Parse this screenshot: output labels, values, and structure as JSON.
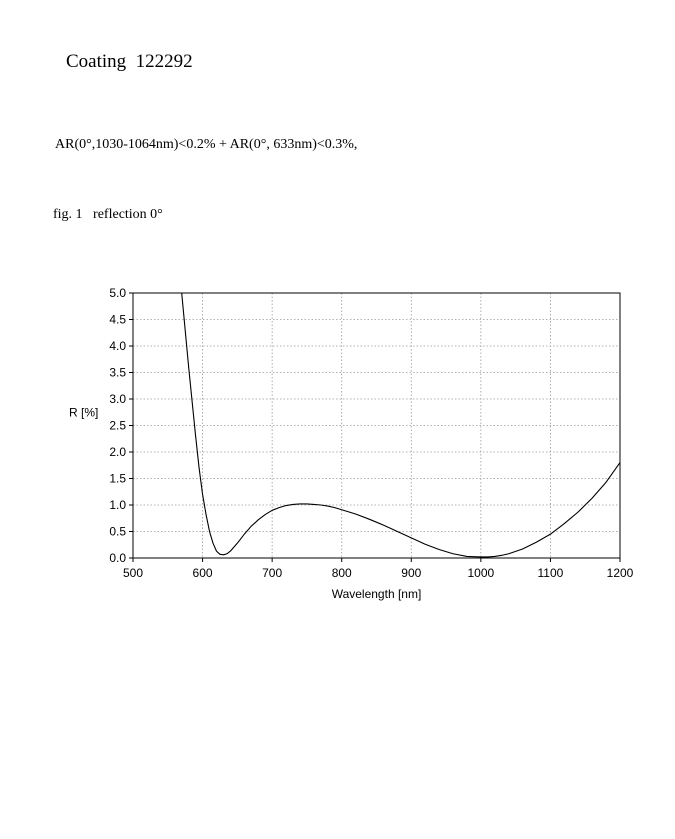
{
  "page": {
    "title": "Coating  122292",
    "spec": "AR(0°,1030-1064nm)<0.2% + AR(0°, 633nm)<0.3%,",
    "figure_caption": "fig. 1   reflection 0°"
  },
  "chart_data": {
    "type": "line",
    "title": "",
    "xlabel": "Wavelength [nm]",
    "ylabel": "R [%]",
    "xlim": [
      500,
      1200
    ],
    "ylim": [
      0,
      5
    ],
    "xticks": [
      500,
      600,
      700,
      800,
      900,
      1000,
      1100,
      1200
    ],
    "xtick_labels": [
      "500",
      "600",
      "700",
      "800",
      "900",
      "1000",
      "1100",
      "1200"
    ],
    "yticks": [
      0,
      0.5,
      1,
      1.5,
      2,
      2.5,
      3,
      3.5,
      4,
      4.5,
      5
    ],
    "ytick_labels": [
      "0.0",
      "0.5",
      "1.0",
      "1.5",
      "2.0",
      "2.5",
      "3.0",
      "3.5",
      "4.0",
      "4.5",
      "5.0"
    ],
    "grid": true,
    "series": [
      {
        "color": "#000000",
        "x": [
          570,
          575,
          580,
          585,
          590,
          595,
          600,
          605,
          610,
          615,
          620,
          625,
          630,
          635,
          640,
          650,
          660,
          670,
          680,
          690,
          700,
          710,
          720,
          730,
          740,
          750,
          760,
          770,
          780,
          790,
          800,
          820,
          840,
          860,
          880,
          900,
          920,
          940,
          960,
          980,
          1000,
          1010,
          1020,
          1030,
          1040,
          1060,
          1080,
          1100,
          1120,
          1140,
          1160,
          1180,
          1200
        ],
        "y": [
          5.0,
          4.3,
          3.6,
          2.95,
          2.3,
          1.7,
          1.2,
          0.82,
          0.5,
          0.28,
          0.13,
          0.07,
          0.06,
          0.08,
          0.13,
          0.28,
          0.45,
          0.6,
          0.72,
          0.82,
          0.9,
          0.95,
          0.99,
          1.01,
          1.02,
          1.02,
          1.01,
          1.0,
          0.98,
          0.95,
          0.91,
          0.83,
          0.73,
          0.62,
          0.5,
          0.38,
          0.26,
          0.16,
          0.08,
          0.03,
          0.02,
          0.02,
          0.03,
          0.05,
          0.08,
          0.17,
          0.3,
          0.45,
          0.65,
          0.87,
          1.13,
          1.43,
          1.8
        ]
      }
    ]
  }
}
